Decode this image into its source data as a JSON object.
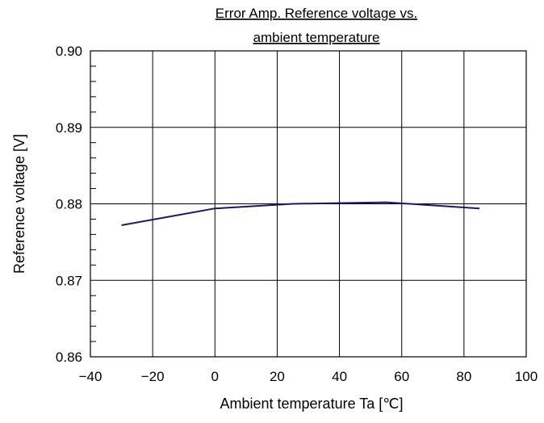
{
  "chart_data": {
    "type": "line",
    "title_lines": [
      "Error Amp. Reference voltage vs.",
      "ambient temperature"
    ],
    "xlabel": "Ambient temperature Ta  [℃]",
    "ylabel": "Reference voltage  [V]",
    "xlim": [
      -40,
      100
    ],
    "ylim": [
      0.86,
      0.9
    ],
    "xticks": [
      -40,
      -20,
      0,
      20,
      40,
      60,
      80,
      100
    ],
    "xtick_labels": [
      "−40",
      "−20",
      "0",
      "20",
      "40",
      "60",
      "80",
      "100"
    ],
    "yticks": [
      0.86,
      0.87,
      0.88,
      0.89,
      0.9
    ],
    "ytick_labels": [
      "0.86",
      "0.87",
      "0.88",
      "0.89",
      "0.90"
    ],
    "y_minor_step": 0.002,
    "grid": true,
    "title_underlined": true,
    "line_color": "#1a1a66",
    "series": [
      {
        "x": [
          -30,
          0,
          25,
          55,
          85
        ],
        "y": [
          0.8772,
          0.8794,
          0.88,
          0.8802,
          0.8794
        ]
      }
    ]
  }
}
